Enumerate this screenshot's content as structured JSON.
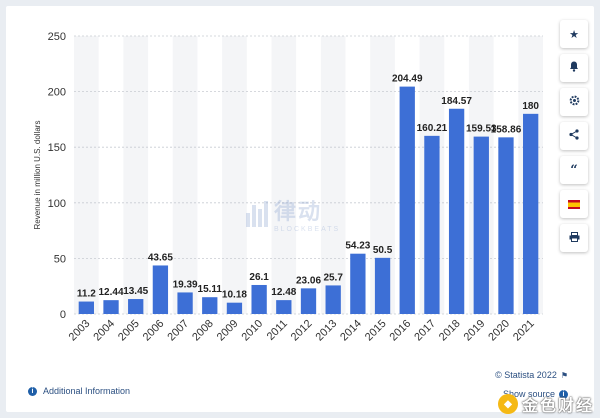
{
  "colors": {
    "bar": "#3d6fd6",
    "band": "#f4f5f7",
    "grid": "#c8ccd2",
    "link": "#2b4f81"
  },
  "chart_data": {
    "type": "bar",
    "ylabel": "Revenue in million U.S. dollars",
    "xlabel": "",
    "title": "",
    "ylim": [
      0,
      250
    ],
    "yticks": [
      0,
      50,
      100,
      150,
      200,
      250
    ],
    "grid": true,
    "categories": [
      "2003",
      "2004",
      "2005",
      "2006",
      "2007",
      "2008",
      "2009",
      "2010",
      "2011",
      "2012",
      "2013",
      "2014",
      "2015",
      "2016",
      "2017",
      "2018",
      "2019",
      "2020",
      "2021"
    ],
    "values": [
      11.2,
      12.44,
      13.45,
      43.65,
      19.39,
      15.11,
      10.18,
      26.1,
      12.48,
      23.06,
      25.7,
      54.23,
      50.5,
      204.49,
      160.21,
      184.57,
      159.53,
      158.86,
      180
    ],
    "value_labels": [
      "11.2",
      "12.44",
      "13.45",
      "43.65",
      "19.39",
      "15.11",
      "10.18",
      "26.1",
      "12.48",
      "23.06",
      "25.7",
      "54.23",
      "50.5",
      "204.49",
      "160.21",
      "184.57",
      "159.53",
      "158.86",
      "180"
    ]
  },
  "toolbar": {
    "items": [
      {
        "name": "star-icon",
        "glyph": "★"
      },
      {
        "name": "bell-icon",
        "glyph": "🔔"
      },
      {
        "name": "gear-icon",
        "glyph": "⚙"
      },
      {
        "name": "share-icon",
        "glyph": "⤴"
      },
      {
        "name": "quote-icon",
        "glyph": "❝"
      },
      {
        "name": "flag-spain-icon",
        "glyph": ""
      },
      {
        "name": "print-icon",
        "glyph": "⎙"
      }
    ]
  },
  "footer": {
    "additional_info": "Additional Information",
    "credit": "© Statista 2022",
    "show_source": "Show source"
  },
  "watermark": {
    "text": "律动",
    "sub": "BLOCKBEATS"
  },
  "brand": {
    "text": "金色财经"
  }
}
